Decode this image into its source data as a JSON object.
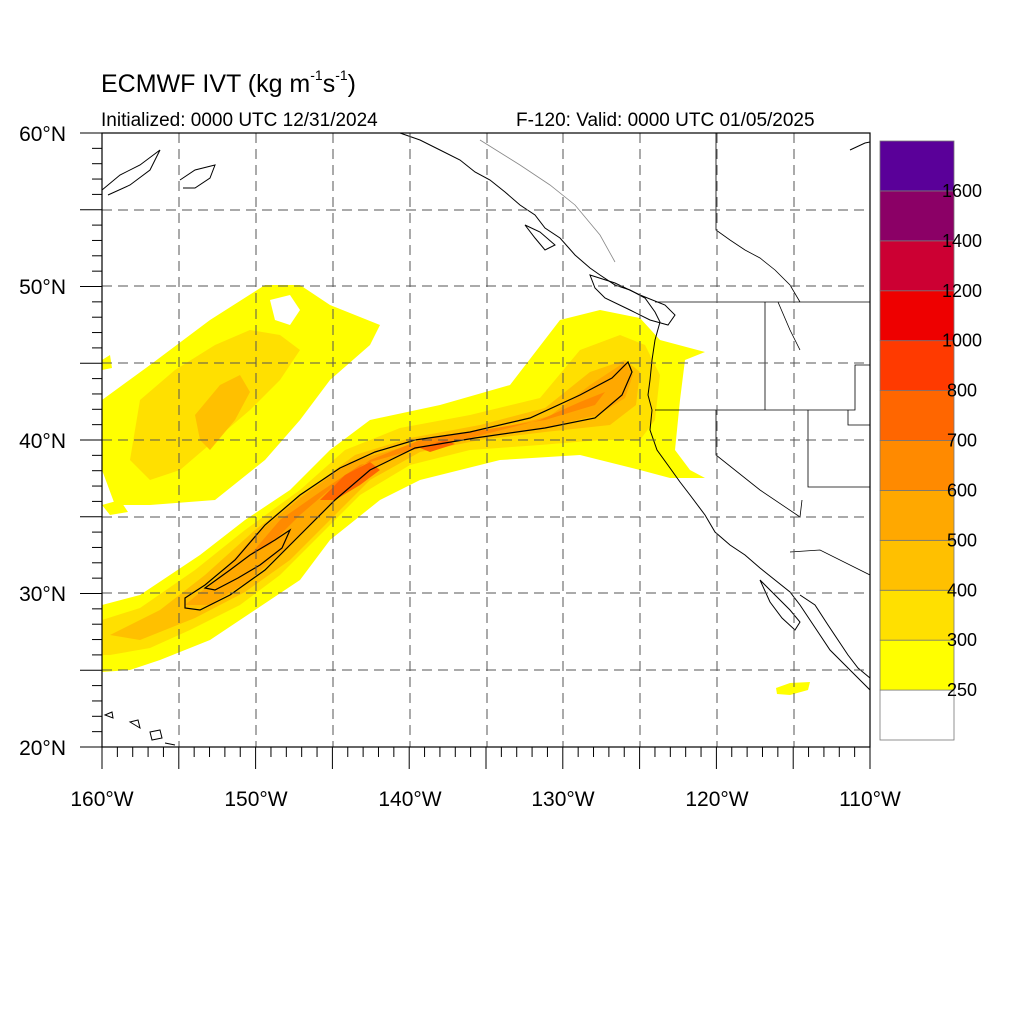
{
  "title": {
    "main": "ECMWF IVT (kg m",
    "sup1": "-1",
    "mid": "s",
    "sup2": "-1",
    "end": ")"
  },
  "subtitle": {
    "initialized": "Initialized: 0000 UTC 12/31/2024",
    "valid": "F-120: Valid: 0000 UTC 01/05/2025"
  },
  "axes": {
    "lon_labels": [
      "160°W",
      "150°W",
      "140°W",
      "130°W",
      "120°W",
      "110°W"
    ],
    "lat_labels": [
      "60°N",
      "50°N",
      "40°N",
      "30°N",
      "20°N"
    ],
    "lon_range": [
      -160,
      -110
    ],
    "lat_range": [
      20,
      60
    ],
    "grid": "dashed"
  },
  "colorbar": {
    "labels": [
      "1600",
      "1400",
      "1200",
      "1000",
      "800",
      "700",
      "600",
      "500",
      "400",
      "300",
      "250"
    ],
    "colors": [
      "#ffffff",
      "#ffff00",
      "#ffe000",
      "#ffc000",
      "#ffa800",
      "#ff8a00",
      "#ff6600",
      "#ff3a00",
      "#ee0000",
      "#cc0033",
      "#8b0066",
      "#5a0099"
    ]
  },
  "map_features": {
    "variable": "IVT",
    "contours_drawn_at": "500 and 700"
  }
}
